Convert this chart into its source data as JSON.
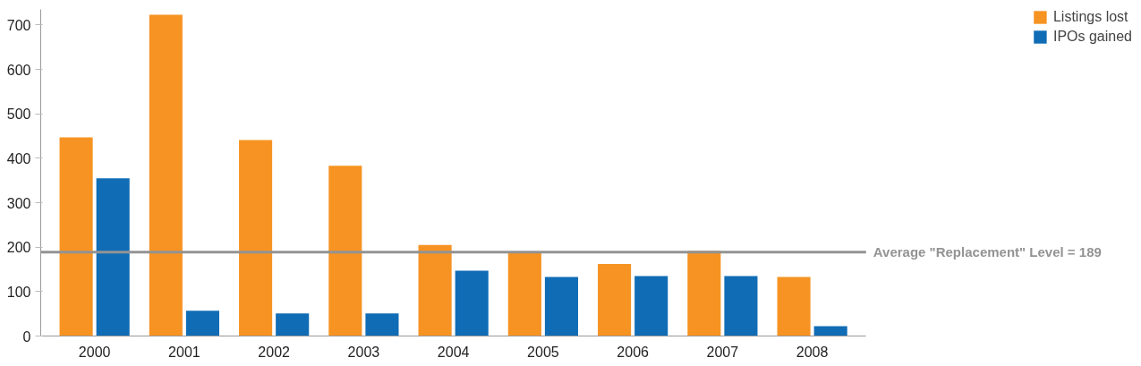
{
  "chart_data": {
    "type": "bar",
    "categories": [
      "2000",
      "2001",
      "2002",
      "2003",
      "2004",
      "2005",
      "2006",
      "2007",
      "2008"
    ],
    "series": [
      {
        "name": "Listings lost",
        "color": "#f69322",
        "values": [
          447,
          723,
          441,
          383,
          205,
          190,
          162,
          192,
          133
        ]
      },
      {
        "name": "IPOs gained",
        "color": "#106cb5",
        "values": [
          355,
          57,
          51,
          51,
          147,
          133,
          135,
          135,
          22
        ]
      }
    ],
    "ylim": [
      0,
      735
    ],
    "yticks": [
      0,
      100,
      200,
      300,
      400,
      500,
      600,
      700
    ],
    "ref_lines": [
      {
        "axis": "y",
        "value": 189,
        "label": "Average \"Replacement\" Level = 189",
        "color": "#939393"
      }
    ],
    "grid": false,
    "legend": "top right"
  }
}
